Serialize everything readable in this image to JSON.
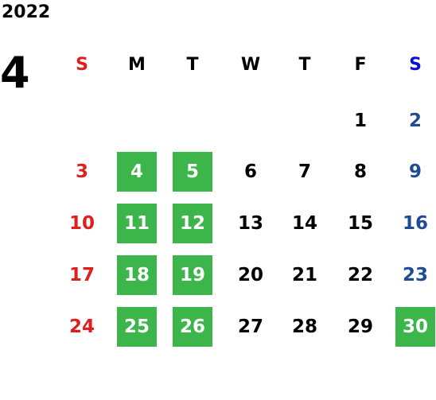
{
  "year": "2022",
  "month": "4",
  "weekdays": [
    "S",
    "M",
    "T",
    "W",
    "T",
    "F",
    "S"
  ],
  "weeks": [
    [
      null,
      null,
      null,
      null,
      null,
      {
        "day": 1
      },
      {
        "day": 2
      }
    ],
    [
      {
        "day": 3
      },
      {
        "day": 4,
        "highlight": true
      },
      {
        "day": 5,
        "highlight": true
      },
      {
        "day": 6
      },
      {
        "day": 7
      },
      {
        "day": 8
      },
      {
        "day": 9
      }
    ],
    [
      {
        "day": 10
      },
      {
        "day": 11,
        "highlight": true
      },
      {
        "day": 12,
        "highlight": true
      },
      {
        "day": 13
      },
      {
        "day": 14
      },
      {
        "day": 15
      },
      {
        "day": 16
      }
    ],
    [
      {
        "day": 17
      },
      {
        "day": 18,
        "highlight": true
      },
      {
        "day": 19,
        "highlight": true
      },
      {
        "day": 20
      },
      {
        "day": 21
      },
      {
        "day": 22
      },
      {
        "day": 23
      }
    ],
    [
      {
        "day": 24
      },
      {
        "day": 25,
        "highlight": true
      },
      {
        "day": 26,
        "highlight": true
      },
      {
        "day": 27
      },
      {
        "day": 28
      },
      {
        "day": 29
      },
      {
        "day": 30,
        "highlight": true
      }
    ]
  ]
}
